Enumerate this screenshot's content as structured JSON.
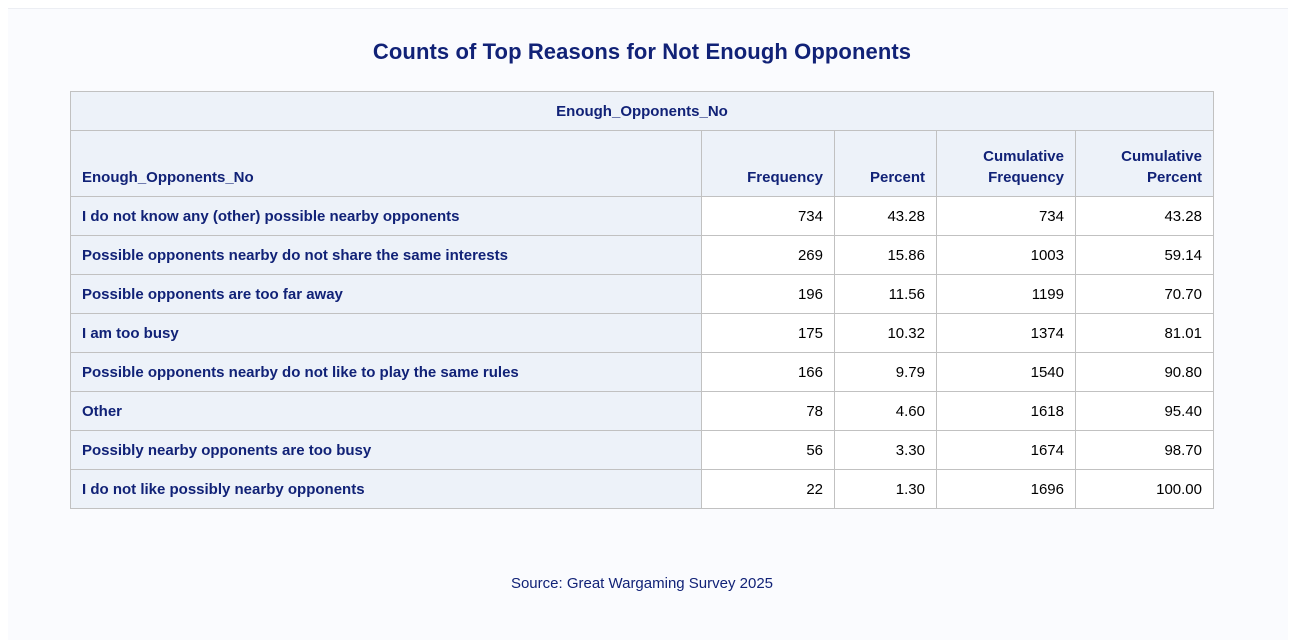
{
  "title": "Counts of Top Reasons for Not Enough Opponents",
  "table": {
    "spanning_header": "Enough_Opponents_No",
    "columns": [
      "Enough_Opponents_No",
      "Frequency",
      "Percent",
      "Cumulative\nFrequency",
      "Cumulative\nPercent"
    ],
    "rows": [
      {
        "label": "I do not know any (other) possible nearby opponents",
        "frequency": "734",
        "percent": "43.28",
        "cum_frequency": "734",
        "cum_percent": "43.28"
      },
      {
        "label": "Possible opponents nearby do not share the same interests",
        "frequency": "269",
        "percent": "15.86",
        "cum_frequency": "1003",
        "cum_percent": "59.14"
      },
      {
        "label": "Possible opponents are too far away",
        "frequency": "196",
        "percent": "11.56",
        "cum_frequency": "1199",
        "cum_percent": "70.70"
      },
      {
        "label": "I am too busy",
        "frequency": "175",
        "percent": "10.32",
        "cum_frequency": "1374",
        "cum_percent": "81.01"
      },
      {
        "label": "Possible opponents nearby do not like to play the same rules",
        "frequency": "166",
        "percent": "9.79",
        "cum_frequency": "1540",
        "cum_percent": "90.80"
      },
      {
        "label": "Other",
        "frequency": "78",
        "percent": "4.60",
        "cum_frequency": "1618",
        "cum_percent": "95.40"
      },
      {
        "label": "Possibly nearby opponents are too busy",
        "frequency": "56",
        "percent": "3.30",
        "cum_frequency": "1674",
        "cum_percent": "98.70"
      },
      {
        "label": "I do not like possibly nearby opponents",
        "frequency": "22",
        "percent": "1.30",
        "cum_frequency": "1696",
        "cum_percent": "100.00"
      }
    ]
  },
  "footnote": "Source: Great Wargaming Survey 2025",
  "colors": {
    "header_text": "#112277",
    "header_bg": "#edf2f9",
    "border": "#c1c1c1"
  }
}
